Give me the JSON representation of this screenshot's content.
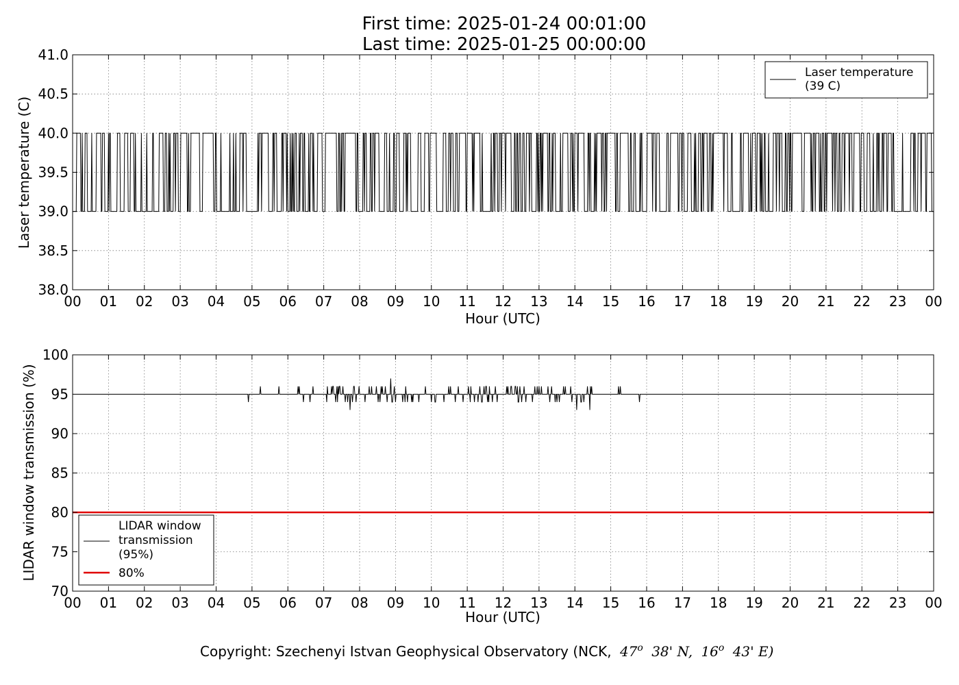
{
  "header": {
    "title_line1": "First time: 2025-01-24 00:01:00",
    "title_line2": "Last time: 2025-01-25 00:00:00"
  },
  "footer": {
    "copyright_prefix": "Copyright: Szechenyi Istvan Geophysical Observatory (NCK,",
    "lat_deg": "47",
    "lat_rest": "38' N,",
    "lon_deg": "16",
    "lon_rest": "43' E)",
    "degree_symbol": "o"
  },
  "chart_data": [
    {
      "type": "line",
      "xlabel": "Hour (UTC)",
      "ylabel": "Laser temperature (C)",
      "xlim": [
        0,
        24
      ],
      "ylim": [
        38.0,
        41.0
      ],
      "xticks": [
        "00",
        "01",
        "02",
        "03",
        "04",
        "05",
        "06",
        "07",
        "08",
        "09",
        "10",
        "11",
        "12",
        "13",
        "14",
        "15",
        "16",
        "17",
        "18",
        "19",
        "20",
        "21",
        "22",
        "23",
        "00"
      ],
      "yticks": [
        "38.0",
        "38.5",
        "39.0",
        "39.5",
        "40.0",
        "40.5",
        "41.0"
      ],
      "grid": true,
      "legend_position": "upper-right",
      "series": [
        {
          "name_line1": "Laser temperature",
          "name_line2": "(39 C)",
          "color": "#000000",
          "description_values": "switches between 39.0 and 40.0 at 1-minute resolution",
          "low": 39.0,
          "high": 40.0,
          "sampling_minutes": 1,
          "high_fraction_by_hour": [
            0.45,
            0.35,
            0.4,
            0.7,
            0.35,
            0.5,
            0.45,
            0.75,
            0.5,
            0.4,
            0.55,
            0.5,
            0.6,
            0.55,
            0.6,
            0.5,
            0.45,
            0.55,
            0.5,
            0.5,
            0.8,
            0.55,
            0.5,
            0.55
          ]
        }
      ]
    },
    {
      "type": "line",
      "xlabel": "Hour (UTC)",
      "ylabel": "LIDAR window transmission (%)",
      "xlim": [
        0,
        24
      ],
      "ylim": [
        70,
        100
      ],
      "xticks": [
        "00",
        "01",
        "02",
        "03",
        "04",
        "05",
        "06",
        "07",
        "08",
        "09",
        "10",
        "11",
        "12",
        "13",
        "14",
        "15",
        "16",
        "17",
        "18",
        "19",
        "20",
        "21",
        "22",
        "23",
        "00"
      ],
      "yticks": [
        "70",
        "75",
        "80",
        "85",
        "90",
        "95",
        "100"
      ],
      "grid": true,
      "legend_position": "lower-left",
      "series": [
        {
          "name_line1": "LIDAR window",
          "name_line2": "transmission",
          "name_line3": "(95%)",
          "color": "#000000",
          "baseline": 95,
          "noisy_range_hours": [
            4.4,
            15.8
          ],
          "min": 93,
          "max": 97
        },
        {
          "name": "80%",
          "color": "#e00000",
          "constant": 80
        }
      ]
    }
  ]
}
